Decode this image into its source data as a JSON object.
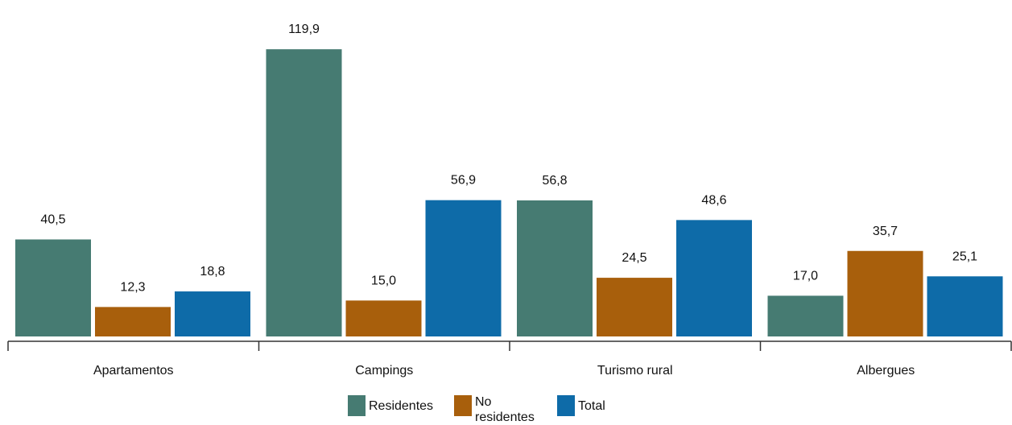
{
  "chart_data": {
    "type": "bar",
    "categories": [
      "Apartamentos",
      "Campings",
      "Turismo rural",
      "Albergues"
    ],
    "series": [
      {
        "name": "Residentes",
        "color": "#467b72",
        "values": [
          40.5,
          119.9,
          56.8,
          17.0
        ],
        "labels": [
          "40,5",
          "119,9",
          "56,8",
          "17,0"
        ]
      },
      {
        "name": "No residentes",
        "color": "#a85f0c",
        "values": [
          12.3,
          15.0,
          24.5,
          35.7
        ],
        "labels": [
          "12,3",
          "15,0",
          "24,5",
          "35,7"
        ]
      },
      {
        "name": "Total",
        "color": "#0e6ba8",
        "values": [
          18.8,
          56.9,
          48.6,
          25.1
        ],
        "labels": [
          "18,8",
          "56,9",
          "48,6",
          "25,1"
        ]
      }
    ],
    "ylim": [
      0,
      125
    ],
    "grid": false,
    "legend_position": "bottom"
  }
}
